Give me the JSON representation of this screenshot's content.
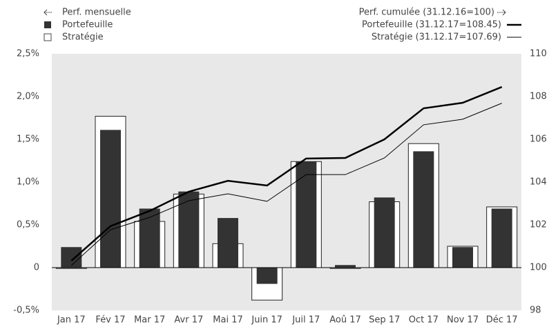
{
  "chart_data": {
    "type": "combo",
    "legend_left_title": "Perf. mensuelle",
    "legend_right_title": "Perf. cumulée (31.12.16=100)",
    "categories": [
      "Jan 17",
      "Fév 17",
      "Mar 17",
      "Avr 17",
      "Mai 17",
      "Juin 17",
      "Juil 17",
      "Aoû 17",
      "Sep 17",
      "Oct 17",
      "Nov 17",
      "Déc 17"
    ],
    "series": [
      {
        "name": "Stratégie",
        "type": "bar",
        "style": "outline",
        "color": "#222222",
        "values": [
          -0.01,
          1.77,
          0.54,
          0.86,
          0.28,
          -0.38,
          1.24,
          -0.01,
          0.77,
          1.45,
          0.25,
          0.71
        ]
      },
      {
        "name": "Portefeuille",
        "type": "bar",
        "style": "filled",
        "color": "#333333",
        "values": [
          0.24,
          1.61,
          0.69,
          0.89,
          0.58,
          -0.19,
          1.24,
          0.03,
          0.82,
          1.36,
          0.24,
          0.69
        ]
      },
      {
        "name": "Portefeuille (31.12.17=108.45)",
        "type": "line",
        "axis": "y2",
        "width": 2.5,
        "color": "#000000",
        "values": [
          100.32,
          101.94,
          102.65,
          103.55,
          104.06,
          103.84,
          105.1,
          105.13,
          106.0,
          107.45,
          107.71,
          108.45
        ]
      },
      {
        "name": "Stratégie (31.12.17=107.69)",
        "type": "line",
        "axis": "y2",
        "width": 1,
        "color": "#000000",
        "values": [
          100.1,
          101.77,
          102.35,
          103.13,
          103.45,
          103.1,
          104.35,
          104.35,
          105.13,
          106.68,
          106.94,
          107.69
        ]
      }
    ],
    "ylim": [
      -0.5,
      2.5
    ],
    "yticks": [
      {
        "value": -0.5,
        "label": "-0,5%"
      },
      0,
      {
        "value": 0.5,
        "label": "0,5%"
      },
      {
        "value": 1,
        "label": "1,0%"
      },
      {
        "value": 1.5,
        "label": "1,5%"
      },
      {
        "value": 2,
        "label": "2,0%"
      },
      {
        "value": 2.5,
        "label": "2,5%"
      }
    ],
    "y2lim": [
      98,
      110
    ],
    "y2ticks": [
      98,
      100,
      102,
      104,
      106,
      108,
      110
    ],
    "background": "#e8e8e8"
  }
}
